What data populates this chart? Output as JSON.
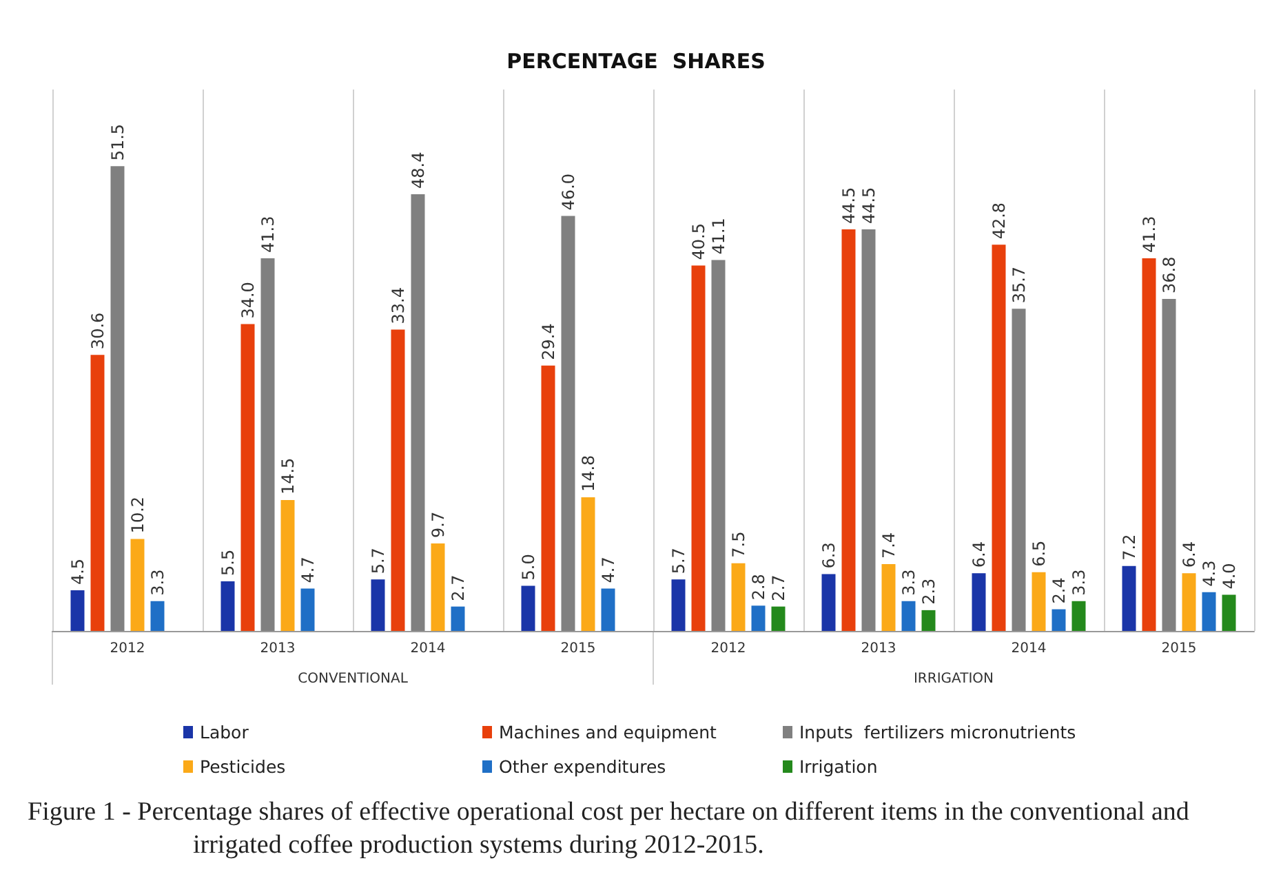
{
  "chart_data": {
    "type": "bar",
    "title": "PERCENTAGE  SHARES",
    "categories": [
      "2012",
      "2013",
      "2014",
      "2015",
      "2012",
      "2013",
      "2014",
      "2015"
    ],
    "series": [
      {
        "name": "Labor",
        "color": "#1a35a8",
        "values": [
          4.5,
          5.5,
          5.7,
          5.0,
          5.7,
          6.3,
          6.4,
          7.2
        ],
        "value_labels": [
          "4.5",
          "5.5",
          "5.7",
          "5.0",
          "5.7",
          "6.3",
          "6.4",
          "7.2"
        ]
      },
      {
        "name": "Machines and equipment",
        "color": "#e8400c",
        "values": [
          30.6,
          34.0,
          33.4,
          29.4,
          40.5,
          44.5,
          42.8,
          41.3
        ],
        "value_labels": [
          "30.6",
          "34.0",
          "33.4",
          "29.4",
          "40.5",
          "44.5",
          "42.8",
          "41.3"
        ]
      },
      {
        "name": "Inputs  fertilizers micronutrients",
        "color": "#808080",
        "values": [
          51.5,
          41.3,
          48.4,
          46.0,
          41.1,
          44.5,
          35.7,
          36.8
        ],
        "value_labels": [
          "51.5",
          "41.3",
          "48.4",
          "46.0",
          "41.1",
          "44.5",
          "35.7",
          "36.8"
        ]
      },
      {
        "name": "Pesticides",
        "color": "#fba918",
        "values": [
          10.2,
          14.5,
          9.7,
          14.8,
          7.5,
          7.4,
          6.5,
          6.4
        ],
        "value_labels": [
          "10.2",
          "14.5",
          "9.7",
          "14.8",
          "7.5",
          "7.4",
          "6.5",
          "6.4"
        ]
      },
      {
        "name": "Other expenditures",
        "color": "#1f6fc6",
        "values": [
          3.3,
          4.7,
          2.7,
          4.7,
          2.8,
          3.3,
          2.4,
          4.3
        ],
        "value_labels": [
          "3.3",
          "4.7",
          "2.7",
          "4.7",
          "2.8",
          "3.3",
          "2.4",
          "4.3"
        ]
      },
      {
        "name": "Irrigation",
        "color": "#24891c",
        "values": [
          null,
          null,
          null,
          null,
          2.7,
          2.3,
          3.3,
          4.0
        ],
        "value_labels": [
          null,
          null,
          null,
          null,
          "2.7",
          "2.3",
          "3.3",
          "4.0"
        ]
      }
    ],
    "annotations": [
      "CONVENTIONAL",
      "IRRIGATION",
      "Figure 1 - Percentage shares of effective operational cost per hectare on different items in the conventional and irrigated coffee production systems during 2012-2015."
    ],
    "grid": "x",
    "legend": "bottom"
  }
}
